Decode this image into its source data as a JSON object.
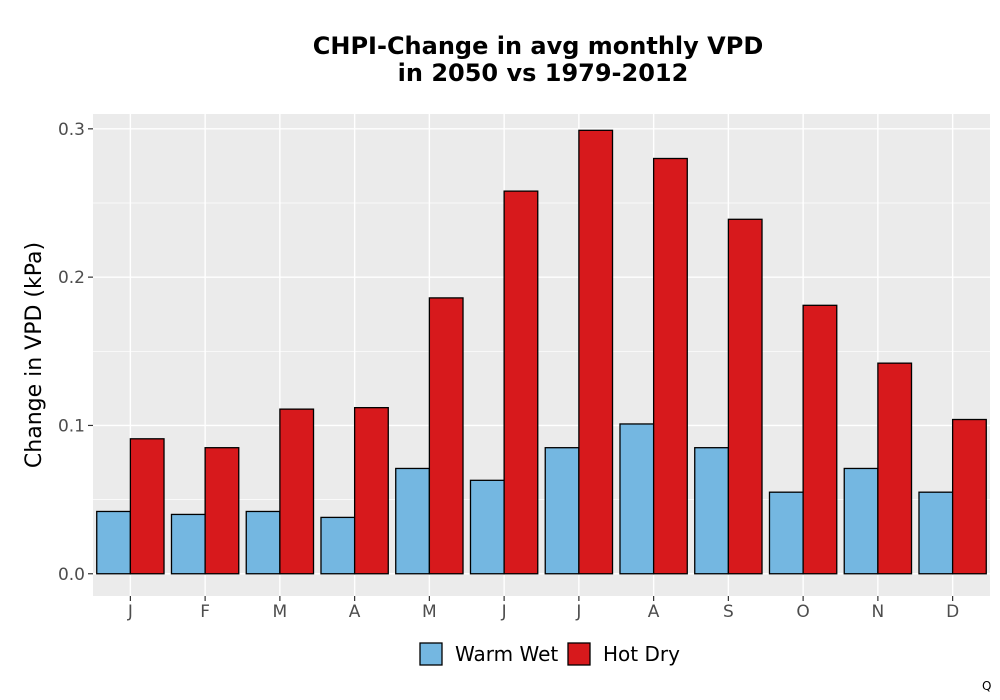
{
  "chart_data": {
    "type": "bar",
    "title_line1": "CHPI-Change in avg monthly VPD",
    "title_line2": "in 2050 vs 1979-2012",
    "xlabel": "",
    "ylabel": "Change in VPD (kPa)",
    "categories": [
      "J",
      "F",
      "M",
      "A",
      "M",
      "J",
      "J",
      "A",
      "S",
      "O",
      "N",
      "D"
    ],
    "ylim": [
      -0.015,
      0.31
    ],
    "yticks": [
      0.0,
      0.1,
      0.2,
      0.3
    ],
    "ytick_labels": [
      "0.0",
      "0.1",
      "0.2",
      "0.3"
    ],
    "grid": true,
    "legend_position": "bottom",
    "series": [
      {
        "name": "Warm Wet",
        "color": "#74b7e1",
        "values": [
          0.042,
          0.04,
          0.042,
          0.038,
          0.071,
          0.063,
          0.085,
          0.101,
          0.085,
          0.055,
          0.071,
          0.055
        ]
      },
      {
        "name": "Hot Dry",
        "color": "#d7191c",
        "values": [
          0.091,
          0.085,
          0.111,
          0.112,
          0.186,
          0.258,
          0.299,
          0.28,
          0.239,
          0.181,
          0.142,
          0.104
        ]
      }
    ]
  },
  "corner_mark": "Q"
}
